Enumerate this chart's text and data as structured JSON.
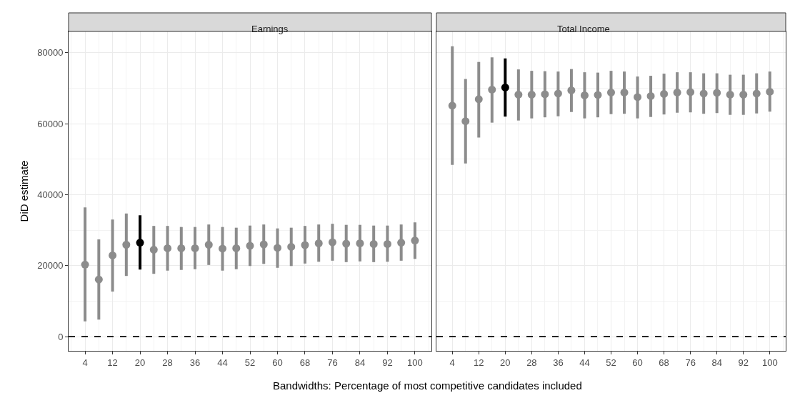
{
  "chart_data": [
    {
      "type": "scatter",
      "title": "Earnings",
      "ylabel": "DiD estimate",
      "xlabel": "Bandwidths: Percentage of most competitive candidates included",
      "x": [
        4,
        8,
        12,
        16,
        20,
        24,
        28,
        32,
        36,
        40,
        44,
        48,
        52,
        56,
        60,
        64,
        68,
        72,
        76,
        80,
        84,
        88,
        92,
        96,
        100
      ],
      "values": [
        20300,
        16100,
        22900,
        25900,
        26500,
        24500,
        24900,
        24900,
        24900,
        25900,
        24800,
        24900,
        25600,
        26000,
        25000,
        25300,
        25800,
        26300,
        26600,
        26200,
        26300,
        26100,
        26100,
        26500,
        27100
      ],
      "errors": [
        [
          4300,
          36400
        ],
        [
          4800,
          27400
        ],
        [
          12700,
          33000
        ],
        [
          17100,
          34700
        ],
        [
          18900,
          34200
        ],
        [
          17700,
          31200
        ],
        [
          18600,
          31200
        ],
        [
          18800,
          30900
        ],
        [
          19000,
          30900
        ],
        [
          20200,
          31600
        ],
        [
          18600,
          30900
        ],
        [
          19000,
          30700
        ],
        [
          19900,
          31300
        ],
        [
          20500,
          31600
        ],
        [
          19400,
          30500
        ],
        [
          19900,
          30700
        ],
        [
          20600,
          31200
        ],
        [
          21100,
          31600
        ],
        [
          21400,
          31800
        ],
        [
          21000,
          31500
        ],
        [
          21200,
          31500
        ],
        [
          21000,
          31300
        ],
        [
          21100,
          31300
        ],
        [
          21400,
          31600
        ],
        [
          21900,
          32200
        ]
      ],
      "colors": [
        "#8c8c8c",
        "#8c8c8c",
        "#8c8c8c",
        "#8c8c8c",
        "#000000",
        "#8c8c8c",
        "#8c8c8c",
        "#8c8c8c",
        "#8c8c8c",
        "#8c8c8c",
        "#8c8c8c",
        "#8c8c8c",
        "#8c8c8c",
        "#8c8c8c",
        "#8c8c8c",
        "#8c8c8c",
        "#8c8c8c",
        "#8c8c8c",
        "#8c8c8c",
        "#8c8c8c",
        "#8c8c8c",
        "#8c8c8c",
        "#8c8c8c",
        "#8c8c8c",
        "#8c8c8c"
      ],
      "xlim": [
        -0.8,
        104.8
      ],
      "xticks": [
        4,
        12,
        20,
        28,
        36,
        44,
        52,
        60,
        68,
        76,
        84,
        92,
        100
      ],
      "ylim": [
        -4000,
        86000
      ],
      "yticks": [
        0,
        20000,
        40000,
        60000,
        80000
      ],
      "ref_lines": [
        {
          "axis": "y",
          "value": 0,
          "color": "#000000",
          "line_style": "dashed"
        }
      ],
      "grid": true,
      "marker": "circle",
      "legend": false
    },
    {
      "type": "scatter",
      "title": "Total Income",
      "x": [
        4,
        8,
        12,
        16,
        20,
        24,
        28,
        32,
        36,
        40,
        44,
        48,
        52,
        56,
        60,
        64,
        68,
        72,
        76,
        80,
        84,
        88,
        92,
        96,
        100
      ],
      "values": [
        65100,
        60700,
        66900,
        69600,
        70200,
        68200,
        68200,
        68300,
        68500,
        69400,
        68000,
        68100,
        68800,
        68800,
        67500,
        67800,
        68400,
        68800,
        68900,
        68500,
        68700,
        68200,
        68200,
        68500,
        69000
      ],
      "errors": [
        [
          48400,
          81800
        ],
        [
          48800,
          72600
        ],
        [
          56100,
          77400
        ],
        [
          60300,
          78700
        ],
        [
          62000,
          78400
        ],
        [
          60900,
          75300
        ],
        [
          61500,
          74900
        ],
        [
          61800,
          74800
        ],
        [
          62100,
          74700
        ],
        [
          63300,
          75400
        ],
        [
          61500,
          74500
        ],
        [
          61800,
          74400
        ],
        [
          62700,
          74900
        ],
        [
          62800,
          74700
        ],
        [
          61500,
          73300
        ],
        [
          61900,
          73500
        ],
        [
          62600,
          74100
        ],
        [
          63100,
          74500
        ],
        [
          63200,
          74500
        ],
        [
          62800,
          74200
        ],
        [
          63000,
          74200
        ],
        [
          62500,
          73800
        ],
        [
          62500,
          73800
        ],
        [
          62900,
          74200
        ],
        [
          63400,
          74700
        ]
      ],
      "colors": [
        "#8c8c8c",
        "#8c8c8c",
        "#8c8c8c",
        "#8c8c8c",
        "#000000",
        "#8c8c8c",
        "#8c8c8c",
        "#8c8c8c",
        "#8c8c8c",
        "#8c8c8c",
        "#8c8c8c",
        "#8c8c8c",
        "#8c8c8c",
        "#8c8c8c",
        "#8c8c8c",
        "#8c8c8c",
        "#8c8c8c",
        "#8c8c8c",
        "#8c8c8c",
        "#8c8c8c",
        "#8c8c8c",
        "#8c8c8c",
        "#8c8c8c",
        "#8c8c8c",
        "#8c8c8c"
      ],
      "xlim": [
        -0.8,
        104.8
      ],
      "xticks": [
        4,
        12,
        20,
        28,
        36,
        44,
        52,
        60,
        68,
        76,
        84,
        92,
        100
      ],
      "ylim": [
        -4000,
        86000
      ],
      "yticks": [
        0,
        20000,
        40000,
        60000,
        80000
      ],
      "ref_lines": [
        {
          "axis": "y",
          "value": 0,
          "color": "#000000",
          "line_style": "dashed"
        }
      ],
      "grid": true,
      "marker": "circle",
      "legend": false,
      "tick_labels": "x"
    }
  ]
}
